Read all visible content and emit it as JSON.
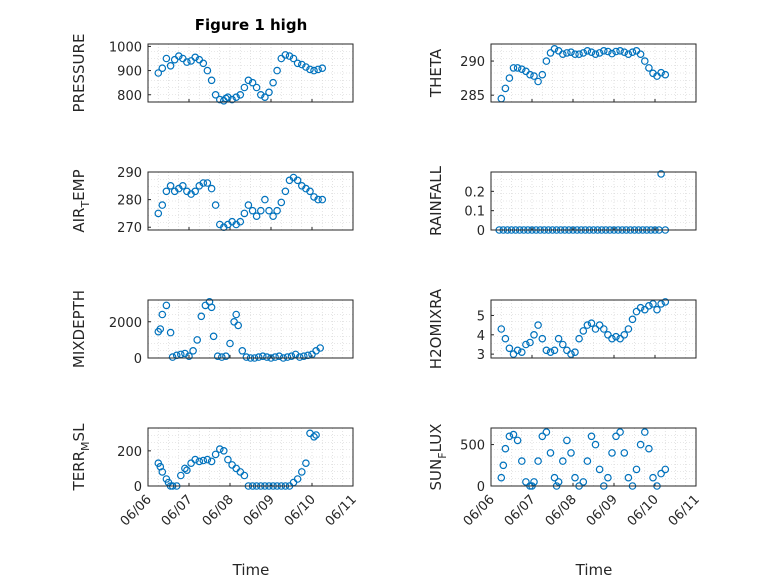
{
  "figure": {
    "title": "Figure 1 high",
    "xlabel": "Time",
    "marker_color": "#0072BD"
  },
  "chart_data": [
    {
      "type": "scatter",
      "ylabel": "PRESSURE",
      "sub": "",
      "yticks": [
        "800",
        "900",
        "1000"
      ],
      "ylim": [
        770,
        1010
      ],
      "xticks": [],
      "xlim": [
        0,
        5
      ],
      "grid": true,
      "x": [
        0.25,
        0.35,
        0.45,
        0.55,
        0.65,
        0.75,
        0.85,
        0.95,
        1.05,
        1.15,
        1.25,
        1.35,
        1.45,
        1.55,
        1.65,
        1.75,
        1.85,
        1.9,
        1.95,
        2.05,
        2.15,
        2.25,
        2.35,
        2.45,
        2.55,
        2.65,
        2.75,
        2.85,
        2.95,
        3.05,
        3.15,
        3.25,
        3.35,
        3.45,
        3.55,
        3.65,
        3.75,
        3.85,
        3.95,
        4.05,
        4.15,
        4.25
      ],
      "y": [
        890,
        910,
        950,
        920,
        945,
        960,
        950,
        935,
        940,
        955,
        945,
        930,
        900,
        860,
        800,
        780,
        775,
        785,
        790,
        780,
        790,
        800,
        830,
        860,
        850,
        830,
        800,
        790,
        810,
        850,
        900,
        950,
        965,
        960,
        950,
        930,
        925,
        915,
        905,
        900,
        905,
        910
      ]
    },
    {
      "type": "scatter",
      "ylabel": "THETA",
      "sub": "",
      "yticks": [
        "285",
        "290"
      ],
      "ylim": [
        284,
        292.5
      ],
      "xticks": [],
      "xlim": [
        0,
        5
      ],
      "grid": true,
      "x": [
        0.25,
        0.35,
        0.45,
        0.55,
        0.65,
        0.75,
        0.85,
        0.95,
        1.05,
        1.15,
        1.25,
        1.35,
        1.45,
        1.55,
        1.65,
        1.75,
        1.85,
        1.95,
        2.05,
        2.15,
        2.25,
        2.35,
        2.45,
        2.55,
        2.65,
        2.75,
        2.85,
        2.95,
        3.05,
        3.15,
        3.25,
        3.35,
        3.45,
        3.55,
        3.65,
        3.75,
        3.85,
        3.95,
        4.05,
        4.15,
        4.25
      ],
      "y": [
        284.5,
        286,
        287.5,
        289,
        289,
        288.8,
        288.5,
        288,
        287.8,
        287,
        288,
        290,
        291.2,
        291.8,
        291.5,
        291,
        291.2,
        291.3,
        291,
        291,
        291.2,
        291.5,
        291.3,
        291,
        291.2,
        291.5,
        291.4,
        291.1,
        291.4,
        291.5,
        291.3,
        291,
        291.3,
        291.5,
        291,
        290,
        289,
        288.2,
        287.8,
        288.3,
        288
      ]
    },
    {
      "type": "scatter",
      "ylabel": "AIR",
      "sub": "T",
      "ylabel_tail": "EMP",
      "yticks": [
        "270",
        "280",
        "290"
      ],
      "ylim": [
        269,
        290
      ],
      "xticks": [],
      "xlim": [
        0,
        5
      ],
      "grid": true,
      "x": [
        0.25,
        0.35,
        0.45,
        0.55,
        0.65,
        0.75,
        0.85,
        0.95,
        1.05,
        1.15,
        1.25,
        1.35,
        1.45,
        1.55,
        1.65,
        1.75,
        1.85,
        1.95,
        2.05,
        2.15,
        2.25,
        2.35,
        2.45,
        2.55,
        2.65,
        2.75,
        2.85,
        2.95,
        3.05,
        3.15,
        3.25,
        3.35,
        3.45,
        3.55,
        3.65,
        3.75,
        3.85,
        3.95,
        4.05,
        4.15,
        4.25
      ],
      "y": [
        275,
        278,
        283,
        285,
        283,
        284,
        285,
        283,
        282,
        283,
        285,
        286,
        286,
        284,
        278,
        271,
        270,
        271,
        272,
        271,
        272,
        275,
        278,
        276,
        274,
        276,
        280,
        276,
        274,
        276,
        279,
        283,
        287,
        288,
        287,
        285,
        284,
        283,
        281,
        280,
        280
      ]
    },
    {
      "type": "scatter",
      "ylabel": "RAINFALL",
      "sub": "",
      "yticks": [
        "0",
        "0.1",
        "0.2"
      ],
      "ylim": [
        0,
        0.3
      ],
      "xticks": [],
      "xlim": [
        0,
        5
      ],
      "grid": true,
      "x": [
        0.2,
        0.3,
        0.4,
        0.5,
        0.6,
        0.7,
        0.8,
        0.9,
        1.0,
        1.1,
        1.2,
        1.3,
        1.4,
        1.5,
        1.6,
        1.7,
        1.8,
        1.9,
        2.0,
        2.1,
        2.2,
        2.3,
        2.4,
        2.5,
        2.6,
        2.7,
        2.8,
        2.9,
        3.0,
        3.1,
        3.2,
        3.3,
        3.4,
        3.5,
        3.6,
        3.7,
        3.8,
        3.9,
        4.0,
        4.1,
        4.15,
        4.25
      ],
      "y": [
        0,
        0,
        0,
        0,
        0,
        0,
        0,
        0,
        0,
        0,
        0,
        0,
        0,
        0,
        0,
        0,
        0,
        0,
        0,
        0,
        0,
        0,
        0,
        0,
        0,
        0,
        0,
        0,
        0,
        0,
        0,
        0,
        0,
        0,
        0,
        0,
        0,
        0,
        0,
        0,
        0.29,
        0
      ]
    },
    {
      "type": "scatter",
      "ylabel": "MIXDEPTH",
      "sub": "",
      "yticks": [
        "0",
        "2000"
      ],
      "ylim": [
        0,
        3200
      ],
      "xticks": [],
      "xlim": [
        0,
        5
      ],
      "grid": true,
      "x": [
        0.25,
        0.3,
        0.35,
        0.45,
        0.55,
        0.6,
        0.7,
        0.8,
        0.9,
        1.0,
        1.1,
        1.2,
        1.3,
        1.4,
        1.5,
        1.55,
        1.6,
        1.7,
        1.8,
        1.9,
        2.0,
        2.1,
        2.15,
        2.2,
        2.3,
        2.4,
        2.5,
        2.6,
        2.7,
        2.8,
        2.9,
        3.0,
        3.1,
        3.2,
        3.3,
        3.4,
        3.5,
        3.6,
        3.7,
        3.8,
        3.9,
        4.0,
        4.1,
        4.2
      ],
      "y": [
        1450,
        1600,
        2400,
        2900,
        1400,
        50,
        150,
        200,
        250,
        100,
        400,
        1000,
        2300,
        2900,
        3100,
        2800,
        1200,
        100,
        50,
        100,
        800,
        2000,
        2400,
        1800,
        400,
        50,
        0,
        0,
        50,
        100,
        50,
        0,
        50,
        100,
        0,
        50,
        100,
        200,
        50,
        100,
        150,
        200,
        400,
        550
      ]
    },
    {
      "type": "scatter",
      "ylabel": "H2OMIXRA",
      "sub": "",
      "yticks": [
        "3",
        "4",
        "5"
      ],
      "ylim": [
        2.8,
        5.8
      ],
      "xticks": [],
      "xlim": [
        0,
        5
      ],
      "grid": true,
      "x": [
        0.25,
        0.35,
        0.45,
        0.55,
        0.65,
        0.75,
        0.85,
        0.95,
        1.05,
        1.15,
        1.25,
        1.35,
        1.45,
        1.55,
        1.65,
        1.75,
        1.85,
        1.95,
        2.05,
        2.15,
        2.25,
        2.35,
        2.45,
        2.55,
        2.65,
        2.75,
        2.85,
        2.95,
        3.05,
        3.15,
        3.25,
        3.35,
        3.45,
        3.55,
        3.65,
        3.75,
        3.85,
        3.95,
        4.05,
        4.15,
        4.25
      ],
      "y": [
        4.3,
        3.8,
        3.3,
        3.0,
        3.2,
        3.1,
        3.5,
        3.6,
        4.0,
        4.5,
        3.8,
        3.2,
        3.1,
        3.2,
        3.8,
        3.5,
        3.2,
        3.0,
        3.1,
        3.8,
        4.2,
        4.5,
        4.6,
        4.3,
        4.5,
        4.3,
        4.0,
        3.8,
        3.9,
        3.8,
        4.0,
        4.3,
        4.8,
        5.2,
        5.4,
        5.3,
        5.5,
        5.6,
        5.3,
        5.6,
        5.7
      ]
    },
    {
      "type": "scatter",
      "ylabel": "TERR",
      "sub": "M",
      "ylabel_tail": "SL",
      "yticks": [
        "0",
        "200"
      ],
      "ylim": [
        0,
        330
      ],
      "xticks": [
        "06/06",
        "06/07",
        "06/08",
        "06/09",
        "06/10",
        "06/11"
      ],
      "xlim": [
        0,
        5
      ],
      "grid": true,
      "x": [
        0.25,
        0.3,
        0.35,
        0.45,
        0.5,
        0.55,
        0.6,
        0.7,
        0.8,
        0.9,
        0.95,
        1.05,
        1.15,
        1.25,
        1.35,
        1.45,
        1.55,
        1.65,
        1.75,
        1.85,
        1.95,
        2.05,
        2.15,
        2.25,
        2.35,
        2.45,
        2.55,
        2.65,
        2.75,
        2.85,
        2.95,
        3.05,
        3.15,
        3.25,
        3.35,
        3.45,
        3.55,
        3.65,
        3.75,
        3.85,
        3.95,
        4.05,
        4.1
      ],
      "y": [
        130,
        110,
        80,
        40,
        20,
        0,
        0,
        0,
        60,
        100,
        90,
        130,
        150,
        140,
        145,
        150,
        140,
        180,
        210,
        200,
        150,
        120,
        100,
        80,
        60,
        0,
        0,
        0,
        0,
        0,
        0,
        0,
        0,
        0,
        0,
        0,
        20,
        40,
        80,
        130,
        300,
        280,
        290
      ]
    },
    {
      "type": "scatter",
      "ylabel": "SUN",
      "sub": "F",
      "ylabel_tail": "LUX",
      "yticks": [
        "0",
        "500"
      ],
      "ylim": [
        0,
        700
      ],
      "xticks": [
        "06/06",
        "06/07",
        "06/08",
        "06/09",
        "06/10",
        "06/11"
      ],
      "xlim": [
        0,
        5
      ],
      "grid": true,
      "x": [
        0.25,
        0.3,
        0.35,
        0.45,
        0.55,
        0.65,
        0.75,
        0.85,
        0.95,
        1.0,
        1.05,
        1.15,
        1.25,
        1.35,
        1.45,
        1.55,
        1.6,
        1.65,
        1.75,
        1.85,
        1.95,
        2.05,
        2.15,
        2.25,
        2.35,
        2.45,
        2.55,
        2.65,
        2.75,
        2.85,
        2.95,
        3.05,
        3.15,
        3.25,
        3.35,
        3.45,
        3.55,
        3.65,
        3.75,
        3.85,
        3.95,
        4.05,
        4.15,
        4.25
      ],
      "y": [
        100,
        250,
        450,
        600,
        620,
        550,
        300,
        50,
        0,
        0,
        50,
        300,
        600,
        650,
        400,
        100,
        0,
        50,
        300,
        550,
        400,
        100,
        0,
        50,
        300,
        600,
        500,
        200,
        0,
        100,
        400,
        600,
        650,
        400,
        100,
        0,
        200,
        500,
        650,
        450,
        100,
        0,
        150,
        200
      ]
    }
  ]
}
